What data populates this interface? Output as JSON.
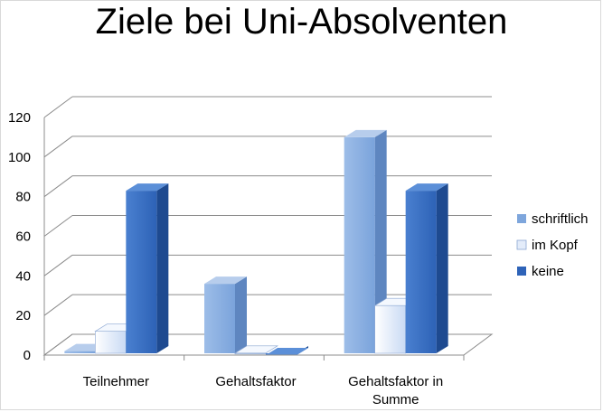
{
  "chart_data": {
    "type": "bar",
    "title": "Ziele bei Uni-Absolventen",
    "categories": [
      {
        "label": "Teilnehmer",
        "lines": [
          "Teilnehmer"
        ]
      },
      {
        "label": "Gehaltsfaktor",
        "lines": [
          "Gehaltsfaktor"
        ]
      },
      {
        "label": "Gehaltsfaktor in Summe",
        "lines": [
          "Gehaltsfaktor in",
          "Summe"
        ]
      }
    ],
    "series": [
      {
        "name": "schriftlich",
        "values": [
          2,
          36,
          110
        ],
        "color": "#7ea6dc"
      },
      {
        "name": "im Kopf",
        "values": [
          12,
          1,
          25
        ],
        "color": "#e3ecfa"
      },
      {
        "name": "keine",
        "values": [
          83,
          0,
          83
        ],
        "color": "#2e63b8"
      }
    ],
    "yticks": [
      0,
      20,
      40,
      60,
      80,
      100,
      120
    ],
    "ylim": [
      0,
      120
    ],
    "grid": true,
    "legend_position": "right",
    "xlabel": "",
    "ylabel": ""
  }
}
